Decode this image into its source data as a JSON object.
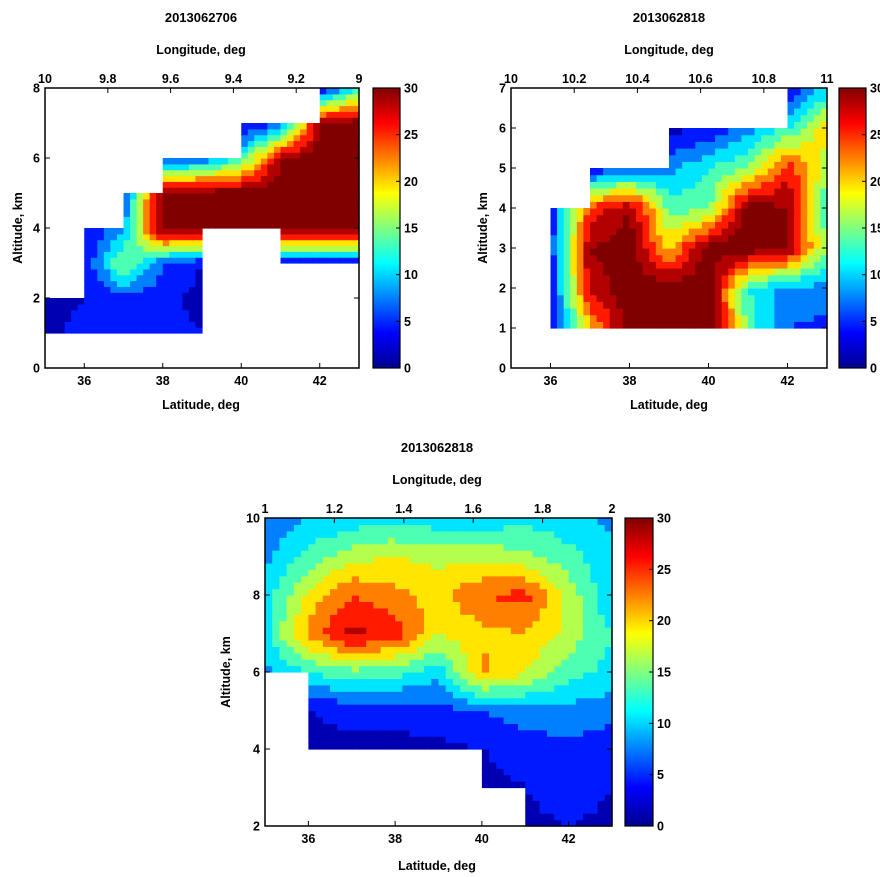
{
  "figure": {
    "background": "#ffffff",
    "colormap": "jet"
  },
  "chart_data": [
    {
      "type": "heatmap",
      "title": "2013062706",
      "xlabel": "Latitude, deg",
      "ylabel": "Altitude, km",
      "x2label": "Longitude, deg",
      "xlim": [
        35,
        43
      ],
      "ylim": [
        0,
        8
      ],
      "x2lim": [
        10,
        9
      ],
      "xticks": [
        "36",
        "38",
        "40",
        "42"
      ],
      "yticks": [
        "0",
        "2",
        "4",
        "6",
        "8"
      ],
      "x2ticks": [
        "10",
        "9.8",
        "9.6",
        "9.4",
        "9.2",
        "9"
      ],
      "colorbar": {
        "min": 0,
        "max": 30,
        "ticks": [
          "0",
          "5",
          "10",
          "15",
          "20",
          "25",
          "30"
        ]
      },
      "grid": {
        "x": [
          35,
          36,
          37,
          38,
          39,
          40,
          41,
          42,
          43
        ],
        "y": [
          1,
          2,
          3,
          4,
          5,
          6,
          7,
          8
        ]
      },
      "z": [
        [
          2,
          4,
          6,
          4,
          3,
          null,
          null,
          null,
          null
        ],
        [
          2,
          3,
          5,
          4,
          2,
          null,
          null,
          null,
          null
        ],
        [
          null,
          3,
          16,
          6,
          3,
          null,
          3,
          3,
          3
        ],
        [
          null,
          3,
          8,
          32,
          32,
          32,
          32,
          32,
          32
        ],
        [
          null,
          null,
          5,
          32,
          32,
          32,
          32,
          32,
          32
        ],
        [
          null,
          null,
          null,
          4,
          6,
          12,
          30,
          32,
          32
        ],
        [
          null,
          null,
          null,
          null,
          null,
          2,
          5,
          30,
          32
        ],
        [
          null,
          null,
          null,
          null,
          null,
          null,
          null,
          3,
          12
        ]
      ]
    },
    {
      "type": "heatmap",
      "title": "2013062818",
      "xlabel": "Latitude,  deg",
      "ylabel": "Altitude,  km",
      "x2label": "Longitude, deg",
      "xlim": [
        35,
        43
      ],
      "ylim": [
        0,
        7
      ],
      "x2lim": [
        10,
        11
      ],
      "xticks": [
        "36",
        "38",
        "40",
        "42"
      ],
      "yticks": [
        "0",
        "1",
        "2",
        "3",
        "4",
        "5",
        "6",
        "7"
      ],
      "x2ticks": [
        "10",
        "10.2",
        "10.4",
        "10.6",
        "10.8",
        "11"
      ],
      "colorbar": {
        "min": 0,
        "max": 30,
        "ticks": [
          "0",
          "5",
          "10",
          "15",
          "20",
          "25",
          "30"
        ]
      },
      "grid": {
        "x": [
          35,
          36,
          37,
          38,
          39,
          40,
          41,
          42,
          43
        ],
        "y": [
          1,
          2,
          3,
          4,
          5,
          6,
          7
        ]
      },
      "z": [
        [
          null,
          3,
          20,
          32,
          32,
          32,
          14,
          6,
          5
        ],
        [
          null,
          3,
          28,
          32,
          32,
          32,
          12,
          8,
          8
        ],
        [
          2,
          4,
          30,
          32,
          20,
          32,
          32,
          30,
          15
        ],
        [
          null,
          4,
          25,
          30,
          14,
          14,
          32,
          30,
          12
        ],
        [
          null,
          null,
          3,
          6,
          8,
          12,
          15,
          26,
          16
        ],
        [
          null,
          null,
          null,
          null,
          2,
          3,
          8,
          12,
          20
        ],
        [
          null,
          null,
          null,
          null,
          null,
          null,
          null,
          3,
          10
        ]
      ]
    },
    {
      "type": "heatmap",
      "title": "2013062818",
      "xlabel": "Latitude,  deg",
      "ylabel": "Altitude,  km",
      "x2label": "Longitude, deg",
      "xlim": [
        35,
        43
      ],
      "ylim": [
        2,
        10
      ],
      "x2lim": [
        1,
        2
      ],
      "xticks": [
        "36",
        "38",
        "40",
        "42"
      ],
      "yticks": [
        "2",
        "4",
        "6",
        "8",
        "10"
      ],
      "x2ticks": [
        "1",
        "1.2",
        "1.4",
        "1.6",
        "1.8",
        "2"
      ],
      "colorbar": {
        "min": 0,
        "max": 30,
        "ticks": [
          "0",
          "5",
          "10",
          "15",
          "20",
          "25",
          "30"
        ]
      },
      "grid": {
        "x": [
          35,
          36,
          37,
          38,
          39,
          40,
          41,
          42,
          43
        ],
        "y": [
          2,
          3,
          4,
          5,
          6,
          7,
          8,
          9,
          10
        ]
      },
      "z": [
        [
          null,
          null,
          null,
          null,
          null,
          null,
          2,
          3,
          2
        ],
        [
          null,
          null,
          null,
          null,
          null,
          2,
          3,
          5,
          3
        ],
        [
          null,
          2,
          2,
          2,
          2,
          3,
          4,
          5,
          4
        ],
        [
          null,
          3,
          4,
          4,
          5,
          6,
          8,
          8,
          7
        ],
        [
          8,
          12,
          14,
          13,
          10,
          22,
          18,
          13,
          11
        ],
        [
          11,
          22,
          28,
          26,
          18,
          20,
          21,
          17,
          12
        ],
        [
          10,
          19,
          24,
          22,
          20,
          24,
          25,
          17,
          9
        ],
        [
          8,
          13,
          17,
          18,
          17,
          17,
          16,
          13,
          10
        ],
        [
          7,
          9,
          10,
          11,
          10,
          10,
          11,
          10,
          8
        ]
      ]
    }
  ]
}
